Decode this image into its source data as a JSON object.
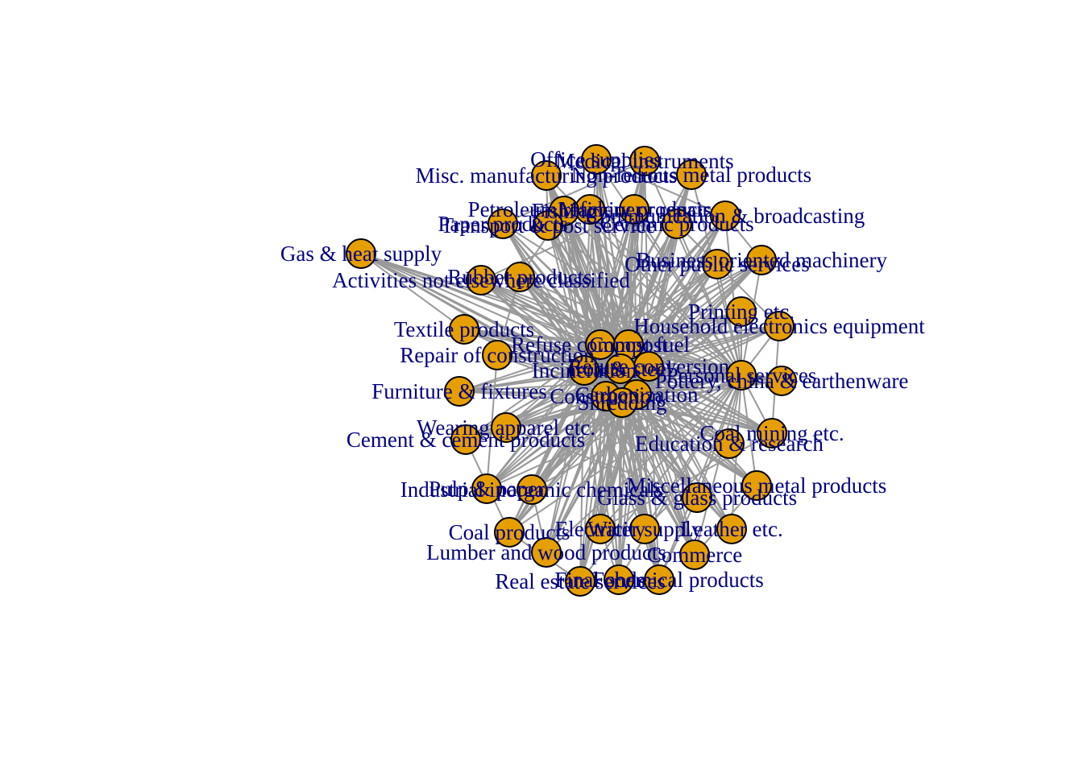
{
  "graph": {
    "edge_color": "#999999",
    "node_fill": "#e69f00",
    "node_stroke": "#000000",
    "label_color": "#000080",
    "hub_node": "Iron & steel",
    "nodes": [
      {
        "id": "office-supplies",
        "label": "Office supplies"
      },
      {
        "id": "medical-instruments",
        "label": "Medical instruments"
      },
      {
        "id": "misc-manufacturing",
        "label": "Misc. manufacturing products"
      },
      {
        "id": "non-ferrous-metal",
        "label": "Non-ferrous metal products"
      },
      {
        "id": "petroleum-refinery",
        "label": "Petroleum refinery products"
      },
      {
        "id": "fishing",
        "label": "Fishing"
      },
      {
        "id": "machinery-repair",
        "label": "Machinery repair"
      },
      {
        "id": "communication-broadcasting",
        "label": "Communication & broadcasting"
      },
      {
        "id": "paper-products",
        "label": "Paper products"
      },
      {
        "id": "transport-post",
        "label": "Transport & post service"
      },
      {
        "id": "ceramic-products",
        "label": "Ceramic products"
      },
      {
        "id": "gas-heat",
        "label": "Gas & heat supply"
      },
      {
        "id": "rubber-products",
        "label": "Rubber products"
      },
      {
        "id": "activities-nec",
        "label": "Activities not elsewhere classified"
      },
      {
        "id": "business-machinery",
        "label": "Business oriented machinery"
      },
      {
        "id": "other-public",
        "label": "Other public services"
      },
      {
        "id": "printing",
        "label": "Printing etc."
      },
      {
        "id": "household-electronics",
        "label": "Household electronics equipment"
      },
      {
        "id": "textile-products",
        "label": "Textile products"
      },
      {
        "id": "refuse-fuel",
        "label": "Refuse compost fuel"
      },
      {
        "id": "compost",
        "label": "Compost"
      },
      {
        "id": "repair-construction",
        "label": "Repair of construction"
      },
      {
        "id": "incineration",
        "label": "Incineration"
      },
      {
        "id": "refuse-conversion",
        "label": "Refuse conversion"
      },
      {
        "id": "iron-steel",
        "label": "Iron & steel"
      },
      {
        "id": "personal-services",
        "label": "Personal services"
      },
      {
        "id": "pottery",
        "label": "Pottery, china & earthenware"
      },
      {
        "id": "furniture",
        "label": "Furniture & fixtures"
      },
      {
        "id": "construction",
        "label": "Construction"
      },
      {
        "id": "carbonization",
        "label": "Carbonization"
      },
      {
        "id": "shredding",
        "label": "Shredding"
      },
      {
        "id": "wearing-apparel",
        "label": "Wearing apparel etc."
      },
      {
        "id": "cement",
        "label": "Cement & cement products"
      },
      {
        "id": "coal-mining",
        "label": "Coal mining etc."
      },
      {
        "id": "education-research",
        "label": "Education & research"
      },
      {
        "id": "pulp-paper",
        "label": "Pulp & paper"
      },
      {
        "id": "industrial-inorganic",
        "label": "Industrial inorganic chemicals"
      },
      {
        "id": "misc-metal",
        "label": "Miscellaneous metal products"
      },
      {
        "id": "glass",
        "label": "Glass & glass products"
      },
      {
        "id": "coal-products",
        "label": "Coal products"
      },
      {
        "id": "electricity",
        "label": "Electricity"
      },
      {
        "id": "water-supply",
        "label": "Water supply"
      },
      {
        "id": "leather",
        "label": "Leather etc."
      },
      {
        "id": "lumber-wood",
        "label": "Lumber and wood products"
      },
      {
        "id": "commerce",
        "label": "Commerce"
      },
      {
        "id": "final-chemical",
        "label": "Final chemical products"
      },
      {
        "id": "real-estate",
        "label": "Real estate services"
      },
      {
        "id": "foods",
        "label": "Foods"
      }
    ]
  }
}
